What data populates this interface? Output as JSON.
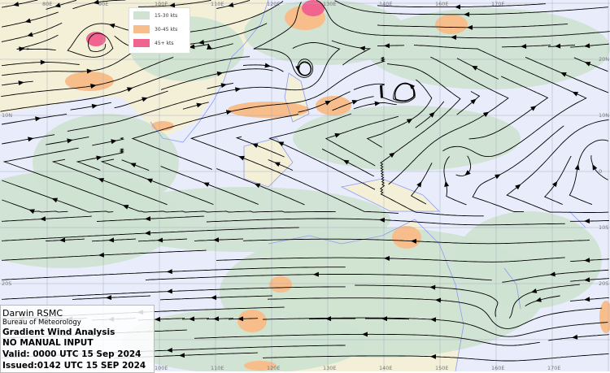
{
  "map": {
    "type": "streamline gradient wind analysis",
    "colors": {
      "ocean": "#e9edfb",
      "land": "#f4f0d8",
      "coast": "#8f9cf0",
      "grid": "#a9aebf",
      "streamline": "#000000"
    },
    "top_labels": [
      "80E",
      "90E",
      "100E",
      "110E",
      "120E",
      "130E",
      "140E",
      "160E",
      "170E"
    ],
    "bottom_labels": [
      "100E",
      "110E",
      "120E",
      "130E",
      "140E",
      "150E",
      "160E",
      "170E"
    ],
    "left_labels": [
      "10N",
      "20S"
    ],
    "right_labels": [
      "20N",
      "10N",
      "0",
      "10S",
      "20S"
    ]
  },
  "legend": {
    "items": [
      {
        "label": "15-30 kts",
        "color": "#cfe3d2"
      },
      {
        "label": "30-45 kts",
        "color": "#f7bd8a"
      },
      {
        "label": "45+ kts",
        "color": "#f0648f"
      }
    ]
  },
  "info": {
    "center": "Darwin RSMC",
    "agency": "Bureau of Meteorology",
    "product": "Gradient Wind Analysis",
    "note": "NO MANUAL INPUT",
    "valid": "Valid:   0000 UTC 15 Sep 2024",
    "issued": "Issued:0142 UTC 15 SEP 2024"
  }
}
